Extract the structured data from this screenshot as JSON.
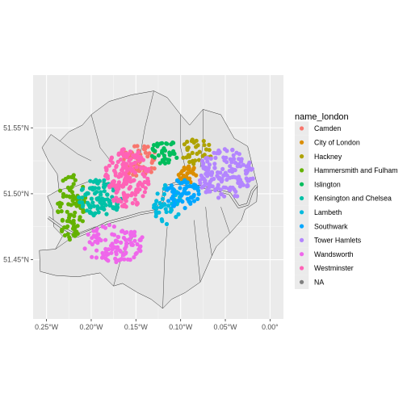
{
  "chart_data": {
    "type": "scatter",
    "title": "",
    "xlabel": "",
    "ylabel": "",
    "xlim": [
      -0.265,
      0.015
    ],
    "ylim": [
      51.405,
      51.59
    ],
    "x_ticks": [
      -0.25,
      -0.2,
      -0.15,
      -0.1,
      -0.05,
      0.0
    ],
    "x_tick_labels": [
      "0.25°W",
      "0.20°W",
      "0.15°W",
      "0.10°W",
      "0.05°W",
      "0.00°"
    ],
    "y_ticks": [
      51.45,
      51.5,
      51.55
    ],
    "y_tick_labels": [
      "51.45°N",
      "51.50°N",
      "51.55°N"
    ],
    "grid": true,
    "legend": {
      "title": "name_london",
      "position": "right",
      "entries": [
        {
          "label": "Camden",
          "color": "#F8766D"
        },
        {
          "label": "City of London",
          "color": "#DB8E00"
        },
        {
          "label": "Hackney",
          "color": "#AEA200"
        },
        {
          "label": "Hammersmith and Fulham",
          "color": "#64B200"
        },
        {
          "label": "Islington",
          "color": "#00BD5C"
        },
        {
          "label": "Kensington and Chelsea",
          "color": "#00C1A7"
        },
        {
          "label": "Lambeth",
          "color": "#00BADE"
        },
        {
          "label": "Southwark",
          "color": "#00A6FF"
        },
        {
          "label": "Tower Hamlets",
          "color": "#B385FF"
        },
        {
          "label": "Wandsworth",
          "color": "#EF67EB"
        },
        {
          "label": "Westminster",
          "color": "#FF63B6"
        },
        {
          "label": "NA",
          "color": "#7F7F7F"
        }
      ]
    },
    "series": [
      {
        "name": "Camden",
        "cx": -0.145,
        "cy": 51.525,
        "sx": 0.012,
        "sy": 0.008,
        "n": 55
      },
      {
        "name": "City of London",
        "cx": -0.092,
        "cy": 51.515,
        "sx": 0.007,
        "sy": 0.004,
        "n": 30
      },
      {
        "name": "Hackney",
        "cx": -0.082,
        "cy": 51.532,
        "sx": 0.011,
        "sy": 0.006,
        "n": 35
      },
      {
        "name": "Hammersmith and Fulham",
        "cx": -0.222,
        "cy": 51.49,
        "sx": 0.01,
        "sy": 0.016,
        "n": 85
      },
      {
        "name": "Islington",
        "cx": -0.118,
        "cy": 51.532,
        "sx": 0.01,
        "sy": 0.006,
        "n": 40
      },
      {
        "name": "Kensington and Chelsea",
        "cx": -0.19,
        "cy": 51.497,
        "sx": 0.015,
        "sy": 0.009,
        "n": 100
      },
      {
        "name": "Lambeth",
        "cx": -0.115,
        "cy": 51.492,
        "sx": 0.01,
        "sy": 0.01,
        "n": 45
      },
      {
        "name": "Southwark",
        "cx": -0.098,
        "cy": 51.5,
        "sx": 0.013,
        "sy": 0.007,
        "n": 60
      },
      {
        "name": "Tower Hamlets",
        "cx": -0.05,
        "cy": 51.515,
        "sx": 0.02,
        "sy": 0.012,
        "n": 160
      },
      {
        "name": "Wandsworth",
        "cx": -0.175,
        "cy": 51.462,
        "sx": 0.022,
        "sy": 0.009,
        "n": 110
      },
      {
        "name": "Westminster",
        "cx": -0.16,
        "cy": 51.512,
        "sx": 0.016,
        "sy": 0.014,
        "n": 170
      }
    ]
  }
}
